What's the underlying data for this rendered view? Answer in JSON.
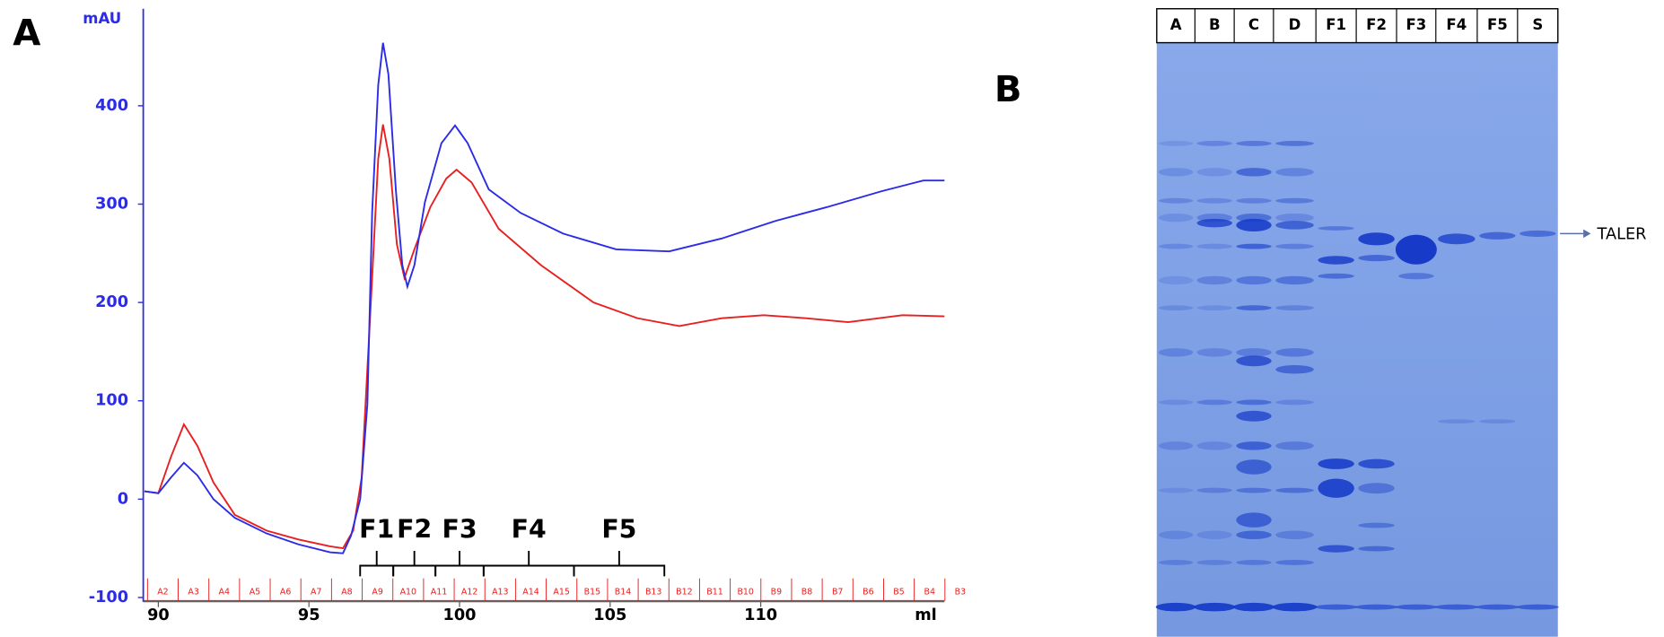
{
  "chart_data": {
    "type": "line",
    "panel_label": "A",
    "y_axis_label": "mAU",
    "x_axis_label": "ml",
    "xlim": [
      89.5,
      116.1
    ],
    "ylim": [
      -100,
      495
    ],
    "xticks": [
      90,
      95,
      100,
      105,
      110
    ],
    "yticks": [
      -100,
      0,
      100,
      200,
      300,
      400
    ],
    "series": [
      {
        "color": "#2b2be8",
        "x": [
          89.54,
          90,
          90.42,
          90.85,
          91.3,
          91.83,
          92.54,
          93.6,
          94.65,
          95.7,
          96.13,
          96.4,
          96.7,
          96.94,
          97.1,
          97.3,
          97.46,
          97.64,
          97.89,
          98.1,
          98.27,
          98.5,
          98.85,
          99.4,
          99.85,
          100.27,
          100.97,
          102.03,
          103.44,
          105.2,
          106.96,
          108.7,
          110.5,
          112.2,
          114,
          115.4,
          116.1
        ],
        "values": [
          8,
          6,
          22,
          37,
          24,
          0,
          -19,
          -35,
          -46,
          -54,
          -55,
          -37,
          0,
          97,
          292,
          421,
          464,
          432,
          313,
          238,
          216,
          238,
          302,
          362,
          380,
          362,
          315,
          291,
          270,
          254,
          252,
          265,
          283,
          297,
          313,
          324,
          324
        ]
      },
      {
        "color": "#e82020",
        "x": [
          89.54,
          90,
          90.42,
          90.85,
          91.3,
          91.83,
          92.54,
          93.6,
          94.65,
          95.7,
          96.13,
          96.47,
          96.75,
          97.03,
          97.3,
          97.46,
          97.67,
          97.92,
          98.17,
          98.5,
          99.03,
          99.56,
          99.9,
          100.4,
          101.3,
          102.7,
          104.45,
          105.9,
          107.3,
          108.7,
          110.1,
          111.5,
          112.9,
          114.7,
          116.1
        ],
        "values": [
          8,
          6,
          43,
          76,
          54,
          17,
          -16,
          -32,
          -41,
          -48,
          -50,
          -32,
          22,
          184,
          346,
          381,
          346,
          259,
          225,
          254,
          297,
          326,
          335,
          322,
          275,
          238,
          200,
          184,
          176,
          184,
          187,
          184,
          180,
          187,
          186
        ]
      }
    ],
    "fractions": [
      {
        "name": "F1",
        "start": 96.7,
        "end": 97.8
      },
      {
        "name": "F2",
        "start": 97.8,
        "end": 99.2
      },
      {
        "name": "F3",
        "start": 99.2,
        "end": 100.8
      },
      {
        "name": "F4",
        "start": 100.8,
        "end": 103.8
      },
      {
        "name": "F5",
        "start": 103.8,
        "end": 106.8
      }
    ],
    "tubes": [
      "A2",
      "A3",
      "A4",
      "A5",
      "A6",
      "A7",
      "A8",
      "A9",
      "A10",
      "A11",
      "A12",
      "A13",
      "A14",
      "A15",
      "B15",
      "B14",
      "B13",
      "B12",
      "B11",
      "B10",
      "B9",
      "B8",
      "B7",
      "B6",
      "B5",
      "B4",
      "B3"
    ]
  },
  "gel": {
    "panel_label": "B",
    "lanes": [
      "A",
      "B",
      "C",
      "D",
      "F1",
      "F2",
      "F3",
      "F4",
      "F5",
      "S"
    ],
    "band_label": "TALER"
  }
}
